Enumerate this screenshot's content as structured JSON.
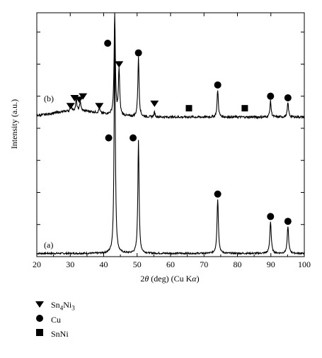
{
  "chart_data": {
    "type": "line",
    "xlabel_parts": [
      "2",
      "θ",
      " (deg) (Cu K",
      "α",
      ")"
    ],
    "ylabel": "Intensity (a.u.)",
    "xlim": [
      20,
      100
    ],
    "xticks": [
      "20",
      "30",
      "40",
      "50",
      "60",
      "70",
      "80",
      "90",
      "100"
    ],
    "grid": false,
    "legend_placement": "bottom-left",
    "series": [
      {
        "label": "(a)",
        "baseline": 0.02,
        "noise": 0.005,
        "peaks": [
          {
            "x": 43.3,
            "y": 1.38,
            "w": 0.22
          },
          {
            "x": 50.4,
            "y": 0.73,
            "w": 0.22
          },
          {
            "x": 74.1,
            "y": 0.36,
            "w": 0.25
          },
          {
            "x": 89.9,
            "y": 0.22,
            "w": 0.25
          },
          {
            "x": 95.1,
            "y": 0.19,
            "w": 0.25
          }
        ],
        "markers": [
          {
            "x": 41.5,
            "y": 0.74,
            "type": "circle"
          },
          {
            "x": 48.8,
            "y": 0.74,
            "type": "circle"
          },
          {
            "x": 74.1,
            "y": 0.39,
            "type": "circle"
          },
          {
            "x": 89.9,
            "y": 0.25,
            "type": "circle"
          },
          {
            "x": 95.1,
            "y": 0.22,
            "type": "circle"
          }
        ]
      },
      {
        "label": "(b)",
        "baseline": 0.87,
        "noise": 0.007,
        "bump": {
          "x": 32,
          "amp": 0.04,
          "sigma": 7
        },
        "peaks": [
          {
            "x": 30.3,
            "y": 0.91,
            "w": 0.2
          },
          {
            "x": 31.8,
            "y": 0.94,
            "w": 0.2
          },
          {
            "x": 33.0,
            "y": 0.93,
            "w": 0.2
          },
          {
            "x": 38.7,
            "y": 0.9,
            "w": 0.2
          },
          {
            "x": 43.3,
            "y": 1.5,
            "w": 0.22
          },
          {
            "x": 44.6,
            "y": 1.16,
            "w": 0.22
          },
          {
            "x": 50.4,
            "y": 1.24,
            "w": 0.22
          },
          {
            "x": 55.2,
            "y": 0.9,
            "w": 0.2
          },
          {
            "x": 74.1,
            "y": 1.04,
            "w": 0.22
          },
          {
            "x": 89.9,
            "y": 0.97,
            "w": 0.22
          },
          {
            "x": 95.1,
            "y": 0.96,
            "w": 0.22
          }
        ],
        "markers": [
          {
            "x": 30.1,
            "y": 0.94,
            "type": "triangle"
          },
          {
            "x": 31.3,
            "y": 0.99,
            "type": "triangle"
          },
          {
            "x": 32.7,
            "y": 0.98,
            "type": "triangle"
          },
          {
            "x": 33.8,
            "y": 1.0,
            "type": "triangle"
          },
          {
            "x": 38.7,
            "y": 0.94,
            "type": "triangle"
          },
          {
            "x": 44.6,
            "y": 1.2,
            "type": "triangle"
          },
          {
            "x": 55.2,
            "y": 0.955,
            "type": "triangle"
          },
          {
            "x": 65.5,
            "y": 0.925,
            "type": "square"
          },
          {
            "x": 82.2,
            "y": 0.925,
            "type": "square"
          },
          {
            "x": 41.2,
            "y": 1.33,
            "type": "circle"
          },
          {
            "x": 50.4,
            "y": 1.27,
            "type": "circle"
          },
          {
            "x": 74.1,
            "y": 1.07,
            "type": "circle"
          },
          {
            "x": 89.9,
            "y": 1.0,
            "type": "circle"
          },
          {
            "x": 95.1,
            "y": 0.99,
            "type": "circle"
          }
        ]
      }
    ],
    "legend": [
      {
        "symbol": "triangle",
        "label_base": "Sn",
        "sub1": "4",
        "mid": "Ni",
        "sub2": "3"
      },
      {
        "symbol": "circle",
        "label": "Cu"
      },
      {
        "symbol": "square",
        "label": "SnNi"
      }
    ]
  }
}
